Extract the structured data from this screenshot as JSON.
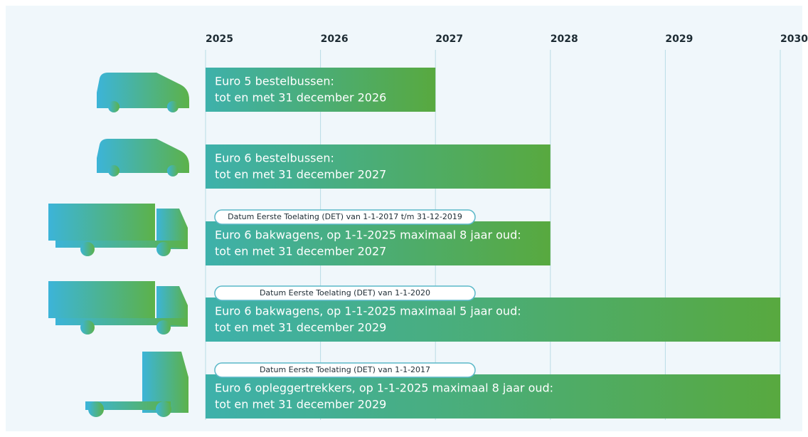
{
  "chart_data": {
    "type": "timeline",
    "xlim": [
      2025,
      2030
    ],
    "xticks": [
      2025,
      2026,
      2027,
      2028,
      2029,
      2030
    ],
    "grid": true,
    "colors": [
      "#3eb1ab",
      "#58a93f"
    ],
    "bars": [
      {
        "lines": [
          "Euro 5 bestelbussen:",
          "tot en met 31 december 2026"
        ],
        "start": 2025,
        "end": 2027
      },
      {
        "lines": [
          "Euro 6 bestelbussen:",
          "tot en met 31 december 2027"
        ],
        "start": 2025,
        "end": 2028
      },
      {
        "note": "Datum Eerste Toelating (DET) van 1-1-2017 t/m 31-12-2019",
        "lines": [
          "Euro 6 bakwagens, op 1-1-2025 maximaal 8 jaar oud:",
          "tot en met 31 december 2027"
        ],
        "start": 2025,
        "end": 2028
      },
      {
        "note": "Datum Eerste Toelating (DET) van 1-1-2020",
        "lines": [
          "Euro 6 bakwagens, op 1-1-2025 maximaal 5 jaar oud:",
          "tot en met 31 december 2029"
        ],
        "start": 2025,
        "end": 2030
      },
      {
        "note": "Datum Eerste Toelating (DET) van 1-1-2017",
        "lines": [
          "Euro 6 opleggertrekkers, op 1-1-2025 maximaal 8 jaar oud:",
          "tot en met 31 december 2029"
        ],
        "start": 2025,
        "end": 2030
      }
    ]
  }
}
